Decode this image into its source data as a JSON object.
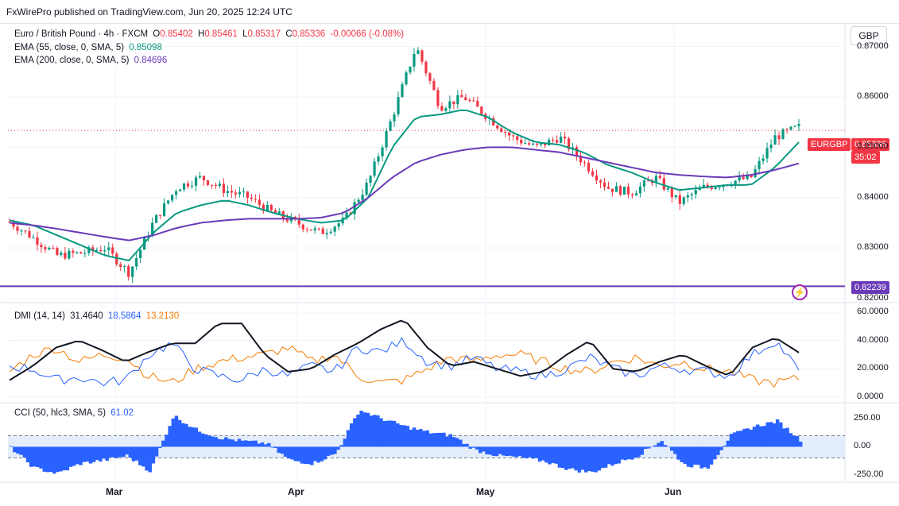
{
  "publisher": "FxWirePro published on TradingView.com, Jun 20, 2025 12:24 UTC",
  "symbol": {
    "title": "Euro / British Pound · 4h · FXCM",
    "o_label": "O",
    "o": "0.85402",
    "h_label": "H",
    "h": "0.85461",
    "l_label": "L",
    "l": "0.85317",
    "c_label": "C",
    "c": "0.85336",
    "change": "-0.00066 (-0.08%)"
  },
  "ema55": {
    "label": "EMA (55, close, 0, SMA, 5)",
    "value": "0.85098"
  },
  "ema200": {
    "label": "EMA (200, close, 0, SMA, 5)",
    "value": "0.84696"
  },
  "currency_button": "GBP",
  "price_tag": {
    "symbol": "EURGBP",
    "price": "0.85336",
    "countdown": "35:02"
  },
  "level_tag": "0.82239",
  "dmi": {
    "label": "DMI (14, 14)",
    "adx": "31.4640",
    "plus_di": "18.5864",
    "minus_di": "13.2130"
  },
  "cci": {
    "label": "CCI (50, hlc3, SMA, 5)",
    "value": "61.02"
  },
  "colors": {
    "up": "#089981",
    "down": "#f23645",
    "ema55": "#089981",
    "ema200": "#6a3ab8",
    "level": "#6a3ab8",
    "adx": "#131722",
    "plus_di": "#2962ff",
    "minus_di": "#f57c00",
    "cci": "#2962ff",
    "cci_band": "#e3edfb"
  },
  "chart_data": {
    "type": "candlestick",
    "timeframe": "4h",
    "x_labels": [
      "Mar",
      "Apr",
      "May",
      "Jun"
    ],
    "price": {
      "y_ticks": [
        "0.87000",
        "0.86000",
        "0.85000",
        "0.84000",
        "0.83000",
        "0.82000"
      ],
      "ylim": [
        0.8193,
        0.8742
      ],
      "ema55_path": [
        0.8355,
        0.8345,
        0.8325,
        0.8305,
        0.8285,
        0.8275,
        0.833,
        0.837,
        0.8385,
        0.8395,
        0.8385,
        0.837,
        0.8358,
        0.835,
        0.8355,
        0.84,
        0.85,
        0.856,
        0.8565,
        0.8575,
        0.856,
        0.853,
        0.851,
        0.8505,
        0.849,
        0.8465,
        0.845,
        0.843,
        0.8415,
        0.842,
        0.8425,
        0.8425,
        0.846,
        0.851
      ],
      "ema200_path": [
        0.835,
        0.8345,
        0.8338,
        0.833,
        0.8322,
        0.8315,
        0.8325,
        0.834,
        0.835,
        0.8355,
        0.8358,
        0.8358,
        0.8358,
        0.836,
        0.837,
        0.84,
        0.844,
        0.847,
        0.8485,
        0.8495,
        0.85,
        0.85,
        0.8495,
        0.849,
        0.848,
        0.847,
        0.846,
        0.845,
        0.8445,
        0.8442,
        0.844,
        0.8445,
        0.8455,
        0.8468
      ],
      "close_path": [
        0.8352,
        0.832,
        0.8285,
        0.829,
        0.83,
        0.825,
        0.835,
        0.842,
        0.844,
        0.8415,
        0.84,
        0.837,
        0.835,
        0.833,
        0.8355,
        0.843,
        0.856,
        0.87,
        0.858,
        0.86,
        0.856,
        0.852,
        0.85,
        0.852,
        0.847,
        0.842,
        0.841,
        0.844,
        0.839,
        0.842,
        0.843,
        0.844,
        0.852,
        0.854
      ],
      "horizontal_level": 0.82239,
      "last_close": 0.85336
    },
    "dmi": {
      "y_ticks": [
        "60.0000",
        "40.0000",
        "20.0000",
        "0.0000"
      ],
      "ylim": [
        0,
        60
      ],
      "adx": [
        12,
        22,
        35,
        40,
        33,
        25,
        32,
        38,
        38,
        52,
        52,
        30,
        18,
        20,
        30,
        38,
        48,
        55,
        35,
        22,
        25,
        20,
        15,
        18,
        30,
        40,
        20,
        18,
        25,
        30,
        22,
        15,
        35,
        42,
        31.46
      ],
      "plus_di": [
        22,
        20,
        12,
        14,
        10,
        12,
        30,
        38,
        20,
        15,
        12,
        20,
        15,
        22,
        18,
        35,
        32,
        40,
        25,
        22,
        28,
        20,
        18,
        15,
        20,
        28,
        20,
        15,
        22,
        20,
        18,
        15,
        30,
        40,
        18.59
      ],
      "minus_di": [
        18,
        30,
        35,
        25,
        30,
        28,
        15,
        10,
        20,
        25,
        28,
        30,
        35,
        25,
        30,
        15,
        10,
        12,
        20,
        28,
        25,
        30,
        30,
        25,
        20,
        18,
        25,
        28,
        22,
        25,
        20,
        18,
        12,
        10,
        13.21
      ]
    },
    "cci": {
      "y_ticks": [
        "250.00",
        "0.00",
        "-250.00"
      ],
      "ylim": [
        -310,
        380
      ],
      "band": [
        -100,
        100
      ],
      "values": [
        -10,
        -190,
        -240,
        -150,
        -120,
        -80,
        -220,
        280,
        150,
        80,
        50,
        30,
        -120,
        -150,
        -60,
        330,
        250,
        180,
        130,
        100,
        -30,
        -80,
        -100,
        -130,
        -200,
        -230,
        -150,
        -80,
        60,
        -160,
        -190,
        100,
        180,
        230,
        61.02
      ]
    }
  }
}
